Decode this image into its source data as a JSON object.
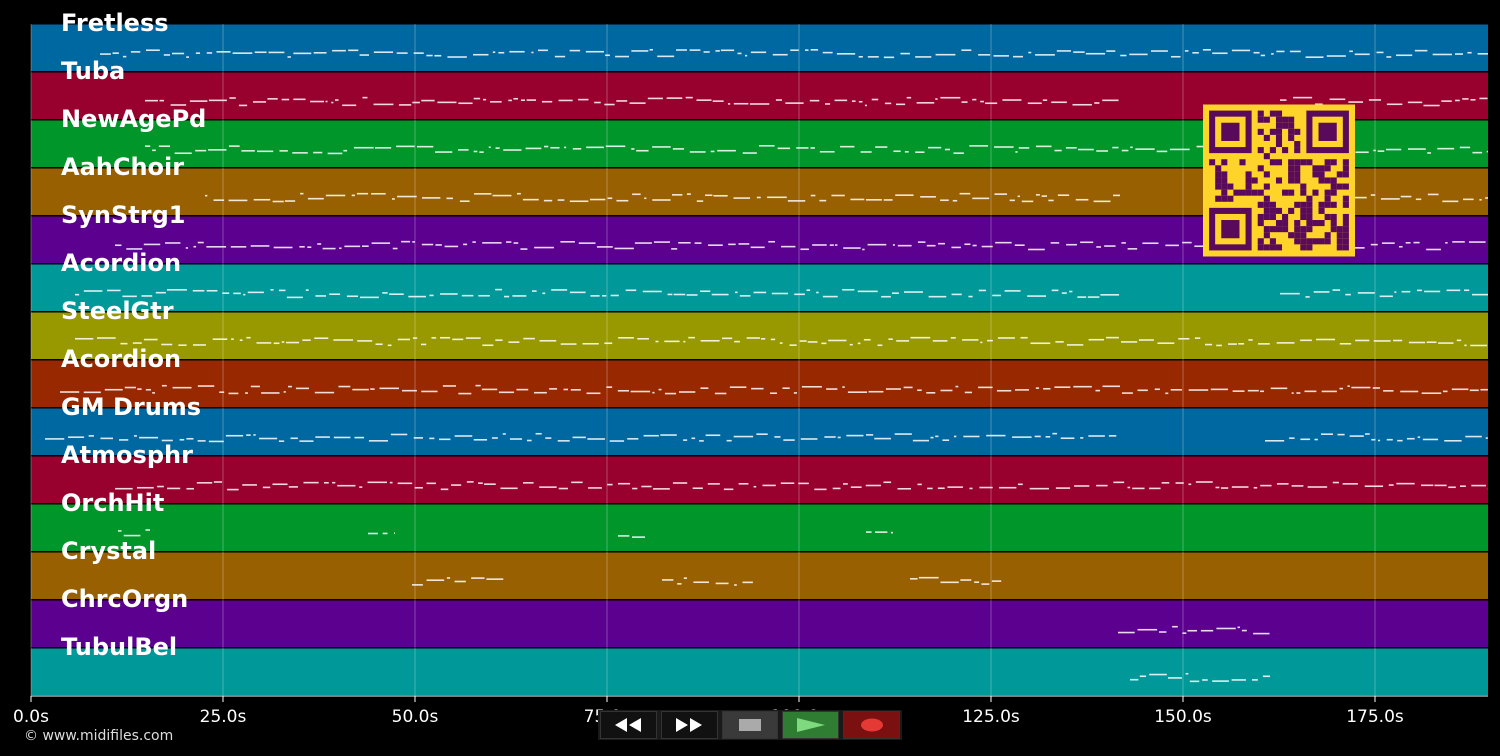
{
  "tracks": [
    {
      "name": "Fretless",
      "color": "#0068a0"
    },
    {
      "name": "Tuba",
      "color": "#98002e"
    },
    {
      "name": "NewAgePd",
      "color": "#00962a"
    },
    {
      "name": "AahChoir",
      "color": "#986000"
    },
    {
      "name": "SynStrg1",
      "color": "#5c0090"
    },
    {
      "name": "Acordion",
      "color": "#009898"
    },
    {
      "name": "SteelGtr",
      "color": "#989800"
    },
    {
      "name": "Acordion",
      "color": "#982800"
    },
    {
      "name": "GM Drums",
      "color": "#0068a0"
    },
    {
      "name": "Atmosphr",
      "color": "#98002e"
    },
    {
      "name": "OrchHit",
      "color": "#00962a"
    },
    {
      "name": "Crystal",
      "color": "#986000"
    },
    {
      "name": "ChrcOrgn",
      "color": "#5c0090"
    },
    {
      "name": "TubulBel",
      "color": "#009898"
    }
  ],
  "timeline": {
    "ticks": [
      "0.0s",
      "25.0s",
      "50.0s",
      "75.0s",
      "100.0s",
      "125.0s",
      "150.0s",
      "175.0s"
    ]
  },
  "copyright": "© www.midifiles.com",
  "transport": {
    "buttons": [
      {
        "name": "rewind-button",
        "icon": "rewind-icon"
      },
      {
        "name": "fast-forward-button",
        "icon": "fast-forward-icon"
      },
      {
        "name": "stop-button",
        "icon": "stop-icon"
      },
      {
        "name": "play-button",
        "icon": "play-icon"
      },
      {
        "name": "record-button",
        "icon": "record-icon"
      }
    ],
    "colors": {
      "play": "#2e7d32",
      "record": "#7a1010",
      "stop": "#3a3a3a"
    }
  },
  "qr": {
    "background": "#ffd42a",
    "foreground": "#5a0a5a"
  }
}
